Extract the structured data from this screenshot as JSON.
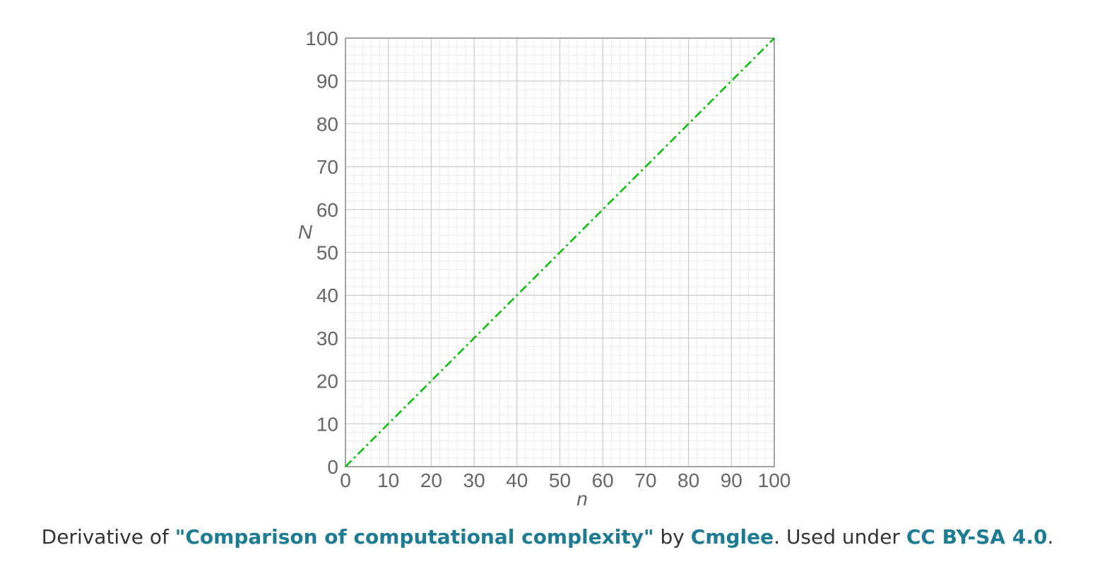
{
  "chart_data": {
    "type": "line",
    "title": "",
    "xlabel": "n",
    "ylabel": "N",
    "xlim": [
      0,
      100
    ],
    "ylim": [
      0,
      100
    ],
    "xticks": [
      0,
      10,
      20,
      30,
      40,
      50,
      60,
      70,
      80,
      90,
      100
    ],
    "yticks": [
      0,
      10,
      20,
      30,
      40,
      50,
      60,
      70,
      80,
      90,
      100
    ],
    "grid": true,
    "series": [
      {
        "color": "#00c000",
        "line_style": "dash-dot",
        "x": [
          0,
          100
        ],
        "y": [
          0,
          100
        ]
      }
    ]
  },
  "caption": {
    "prefix": "Derivative of ",
    "work_title": "\"Comparison of computational complexity\"",
    "by_text": " by ",
    "author": "Cmglee",
    "used_under": ". Used under ",
    "license": "CC BY-SA 4.0",
    "suffix": "."
  },
  "colors": {
    "link": "#1b7c93",
    "text": "#333333",
    "grid_major": "#cccccc",
    "grid_minor": "#ececec",
    "tick_text": "#666666"
  }
}
